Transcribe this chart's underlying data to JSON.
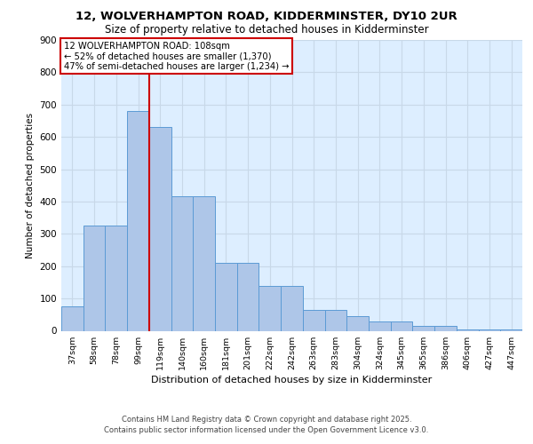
{
  "title1": "12, WOLVERHAMPTON ROAD, KIDDERMINSTER, DY10 2UR",
  "title2": "Size of property relative to detached houses in Kidderminster",
  "xlabel": "Distribution of detached houses by size in Kidderminster",
  "ylabel": "Number of detached properties",
  "categories": [
    "37sqm",
    "58sqm",
    "78sqm",
    "99sqm",
    "119sqm",
    "140sqm",
    "160sqm",
    "181sqm",
    "201sqm",
    "222sqm",
    "242sqm",
    "263sqm",
    "283sqm",
    "304sqm",
    "324sqm",
    "345sqm",
    "365sqm",
    "386sqm",
    "406sqm",
    "427sqm",
    "447sqm"
  ],
  "values": [
    75,
    325,
    325,
    680,
    630,
    415,
    415,
    210,
    210,
    140,
    140,
    65,
    65,
    45,
    30,
    30,
    15,
    15,
    5,
    5,
    5
  ],
  "bar_color": "#aec6e8",
  "bar_edge_color": "#5b9bd5",
  "vline_x": 3.5,
  "vline_color": "#cc0000",
  "annotation_title": "12 WOLVERHAMPTON ROAD: 108sqm",
  "annotation_line2": "← 52% of detached houses are smaller (1,370)",
  "annotation_line3": "47% of semi-detached houses are larger (1,234) →",
  "annotation_box_color": "#cc0000",
  "annotation_bg": "#ffffff",
  "ylim": [
    0,
    900
  ],
  "yticks": [
    0,
    100,
    200,
    300,
    400,
    500,
    600,
    700,
    800,
    900
  ],
  "grid_color": "#c8d8e8",
  "bg_color": "#ddeeff",
  "footer1": "Contains HM Land Registry data © Crown copyright and database right 2025.",
  "footer2": "Contains public sector information licensed under the Open Government Licence v3.0."
}
